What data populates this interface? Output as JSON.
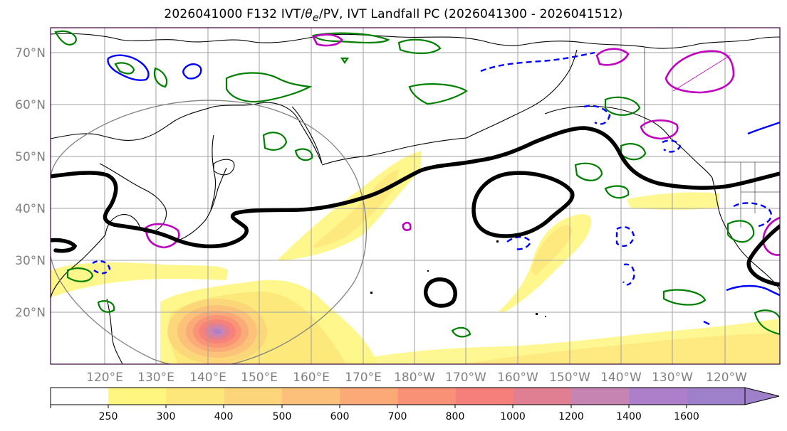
{
  "title": {
    "prefix": "2026041000 F132 IVT/",
    "theta": "θ",
    "theta_sub": "e",
    "suffix": "/PV, IVT Landfall PC (2026041300 - 2026041512)"
  },
  "map": {
    "lat_labels": [
      "70°N",
      "60°N",
      "50°N",
      "40°N",
      "30°N",
      "20°N"
    ],
    "lon_labels": [
      "120°E",
      "130°E",
      "140°E",
      "150°E",
      "160°E",
      "170°E",
      "180°W",
      "170°W",
      "160°W",
      "150°W",
      "140°W",
      "130°W",
      "120°W"
    ],
    "colors": {
      "pv_contour": "#000000",
      "theta_e_contour": "#008000",
      "positive_contour": "#0000ff",
      "landfall_contour": "#c000c0",
      "frame": "#400040"
    }
  },
  "colorbar": {
    "levels": [
      "250",
      "300",
      "400",
      "500",
      "600",
      "700",
      "800",
      "1000",
      "1200",
      "1400",
      "1600"
    ],
    "colors": [
      "#ffffff",
      "#fff67f",
      "#fde67a",
      "#fcd57a",
      "#fcc07a",
      "#fba977",
      "#f99177",
      "#f57f7a",
      "#e17f92",
      "#c684b2",
      "#ad7fca",
      "#9e7fca"
    ]
  }
}
